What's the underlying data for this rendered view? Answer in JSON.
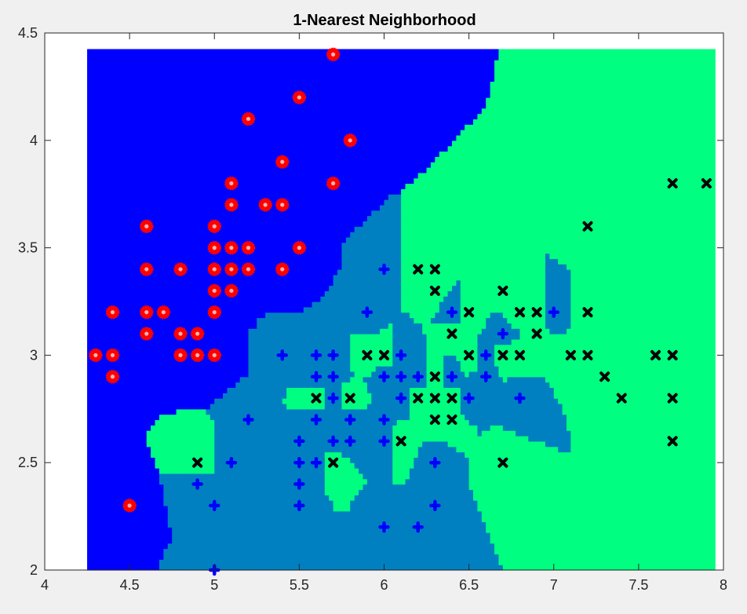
{
  "chart_data": {
    "type": "scatter",
    "title": "1-Nearest Neighborhood",
    "xlabel": "",
    "ylabel": "",
    "xlim": [
      4,
      8
    ],
    "ylim": [
      2,
      4.5
    ],
    "xticks": [
      "4",
      "4.5",
      "5",
      "5.5",
      "6",
      "6.5",
      "7",
      "7.5",
      "8"
    ],
    "yticks": [
      "2",
      "2.5",
      "3",
      "3.5",
      "4",
      "4.5"
    ],
    "grid": false,
    "background": "decision-regions",
    "region_colors": {
      "class1": "#0000ff",
      "class2": "#0080c0",
      "class3": "#00ff80"
    },
    "series": [
      {
        "marker": "red-circle-star",
        "color": "#ff0000",
        "points": [
          [
            5.7,
            4.4
          ],
          [
            5.5,
            4.2
          ],
          [
            5.2,
            4.1
          ],
          [
            5.8,
            4.0
          ],
          [
            5.4,
            3.9
          ],
          [
            5.1,
            3.8
          ],
          [
            5.7,
            3.8
          ],
          [
            5.1,
            3.7
          ],
          [
            5.3,
            3.7
          ],
          [
            5.4,
            3.7
          ],
          [
            4.6,
            3.6
          ],
          [
            5.0,
            3.6
          ],
          [
            5.0,
            3.5
          ],
          [
            5.1,
            3.5
          ],
          [
            5.2,
            3.5
          ],
          [
            5.5,
            3.5
          ],
          [
            4.6,
            3.4
          ],
          [
            4.8,
            3.4
          ],
          [
            5.0,
            3.4
          ],
          [
            5.1,
            3.4
          ],
          [
            5.2,
            3.4
          ],
          [
            5.4,
            3.4
          ],
          [
            5.0,
            3.3
          ],
          [
            5.1,
            3.3
          ],
          [
            4.4,
            3.2
          ],
          [
            4.6,
            3.2
          ],
          [
            4.7,
            3.2
          ],
          [
            5.0,
            3.2
          ],
          [
            4.6,
            3.1
          ],
          [
            4.8,
            3.1
          ],
          [
            4.9,
            3.1
          ],
          [
            4.3,
            3.0
          ],
          [
            4.4,
            3.0
          ],
          [
            4.8,
            3.0
          ],
          [
            4.9,
            3.0
          ],
          [
            5.0,
            3.0
          ],
          [
            4.4,
            2.9
          ],
          [
            4.5,
            2.3
          ]
        ]
      },
      {
        "marker": "blue-plus",
        "color": "#0000ff",
        "points": [
          [
            6.0,
            3.4
          ],
          [
            5.9,
            3.2
          ],
          [
            6.4,
            3.2
          ],
          [
            7.0,
            3.2
          ],
          [
            6.7,
            3.1
          ],
          [
            5.4,
            3.0
          ],
          [
            5.6,
            3.0
          ],
          [
            5.7,
            3.0
          ],
          [
            6.1,
            3.0
          ],
          [
            6.6,
            3.0
          ],
          [
            5.6,
            2.9
          ],
          [
            5.7,
            2.9
          ],
          [
            6.0,
            2.9
          ],
          [
            6.1,
            2.9
          ],
          [
            6.2,
            2.9
          ],
          [
            6.4,
            2.9
          ],
          [
            6.6,
            2.9
          ],
          [
            5.7,
            2.8
          ],
          [
            6.1,
            2.8
          ],
          [
            6.5,
            2.8
          ],
          [
            6.8,
            2.8
          ],
          [
            5.2,
            2.7
          ],
          [
            5.6,
            2.7
          ],
          [
            5.8,
            2.7
          ],
          [
            6.0,
            2.7
          ],
          [
            5.5,
            2.6
          ],
          [
            5.7,
            2.6
          ],
          [
            5.8,
            2.6
          ],
          [
            6.0,
            2.6
          ],
          [
            5.1,
            2.5
          ],
          [
            5.5,
            2.5
          ],
          [
            5.6,
            2.5
          ],
          [
            6.3,
            2.5
          ],
          [
            4.9,
            2.4
          ],
          [
            5.5,
            2.4
          ],
          [
            5.0,
            2.3
          ],
          [
            5.5,
            2.3
          ],
          [
            6.3,
            2.3
          ],
          [
            6.0,
            2.2
          ],
          [
            6.2,
            2.2
          ],
          [
            5.0,
            2.0
          ]
        ]
      },
      {
        "marker": "black-x",
        "color": "#000000",
        "points": [
          [
            7.7,
            3.8
          ],
          [
            7.9,
            3.8
          ],
          [
            7.2,
            3.6
          ],
          [
            6.2,
            3.4
          ],
          [
            6.3,
            3.4
          ],
          [
            6.3,
            3.3
          ],
          [
            6.7,
            3.3
          ],
          [
            6.5,
            3.2
          ],
          [
            6.8,
            3.2
          ],
          [
            6.9,
            3.2
          ],
          [
            7.2,
            3.2
          ],
          [
            6.4,
            3.1
          ],
          [
            6.9,
            3.1
          ],
          [
            5.9,
            3.0
          ],
          [
            6.0,
            3.0
          ],
          [
            6.5,
            3.0
          ],
          [
            6.7,
            3.0
          ],
          [
            6.8,
            3.0
          ],
          [
            7.1,
            3.0
          ],
          [
            7.2,
            3.0
          ],
          [
            7.6,
            3.0
          ],
          [
            7.7,
            3.0
          ],
          [
            6.3,
            2.9
          ],
          [
            7.3,
            2.9
          ],
          [
            5.6,
            2.8
          ],
          [
            5.8,
            2.8
          ],
          [
            6.2,
            2.8
          ],
          [
            6.3,
            2.8
          ],
          [
            6.4,
            2.8
          ],
          [
            7.4,
            2.8
          ],
          [
            7.7,
            2.8
          ],
          [
            6.3,
            2.7
          ],
          [
            6.4,
            2.7
          ],
          [
            6.1,
            2.6
          ],
          [
            7.7,
            2.6
          ],
          [
            4.9,
            2.5
          ],
          [
            5.7,
            2.5
          ],
          [
            6.7,
            2.5
          ]
        ]
      }
    ]
  }
}
